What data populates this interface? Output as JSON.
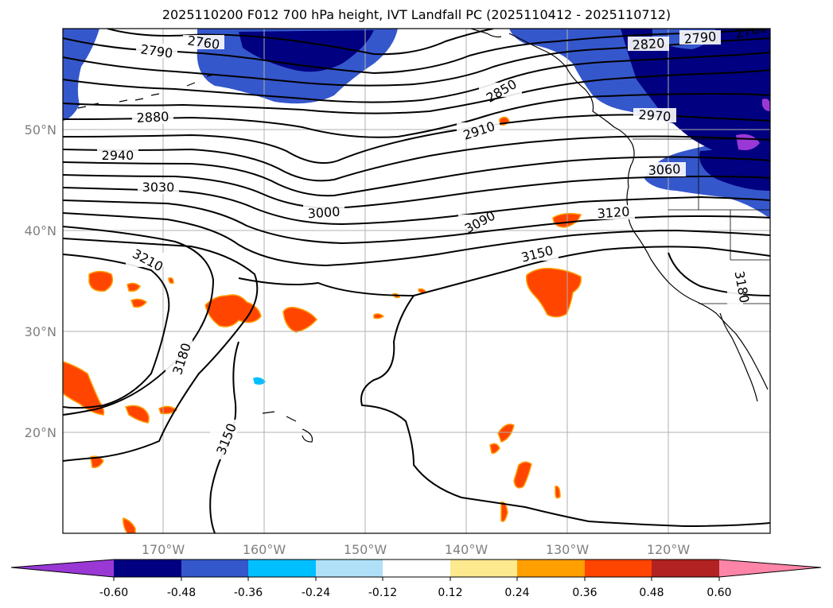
{
  "title": "2025110200 F012 700 hPa height, IVT Landfall PC (2025110412 - 2025110712)",
  "lat_labels": [
    "50°N",
    "40°N",
    "30°N",
    "20°N"
  ],
  "lon_labels": [
    "170°W",
    "160°W",
    "150°W",
    "140°W",
    "130°W",
    "120°W"
  ],
  "contour_labels": [
    "2760",
    "2790",
    "2820",
    "2790",
    "2760",
    "2850",
    "2880",
    "2910",
    "2970",
    "2940",
    "3060",
    "3030",
    "3000",
    "3090",
    "3120",
    "3210",
    "3150",
    "3180",
    "3180",
    "3150"
  ],
  "colorbar": {
    "ticks": [
      "-0.60",
      "-0.48",
      "-0.36",
      "-0.24",
      "-0.12",
      "0.12",
      "0.24",
      "0.36",
      "0.48",
      "0.60"
    ],
    "colors": [
      "#9a38d6",
      "#000080",
      "#3557cc",
      "#00bfff",
      "#afe0f8",
      "#ffffff",
      "#fde98e",
      "#ff9f00",
      "#ff4500",
      "#b22222",
      "#ff85a8"
    ]
  }
}
